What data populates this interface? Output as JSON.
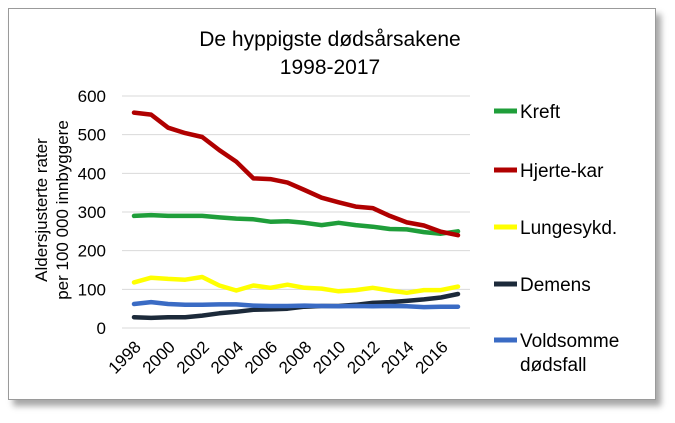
{
  "chart_data": {
    "type": "line",
    "title": "De hyppigste dødsårsakene",
    "subtitle": "1998-2017",
    "ylabel_line1": "Aldersjusterte rater",
    "ylabel_line2": "per 100 000 innbyggere",
    "ylim": [
      0,
      600
    ],
    "y_ticks": [
      "0",
      "100",
      "200",
      "300",
      "400",
      "500",
      "600"
    ],
    "x": [
      1998,
      1999,
      2000,
      2001,
      2002,
      2003,
      2004,
      2005,
      2006,
      2007,
      2008,
      2009,
      2010,
      2011,
      2012,
      2013,
      2014,
      2015,
      2016,
      2017
    ],
    "x_ticks": [
      "1998",
      "2000",
      "2002",
      "2004",
      "2006",
      "2008",
      "2010",
      "2012",
      "2014",
      "2016"
    ],
    "legend_position": "right",
    "grid": true,
    "series": [
      {
        "name": "Kreft",
        "color": "#1f9e3a",
        "values": [
          290,
          292,
          290,
          290,
          290,
          286,
          283,
          281,
          275,
          276,
          272,
          266,
          272,
          266,
          262,
          256,
          255,
          248,
          244,
          250
        ]
      },
      {
        "name": "Hjerte-kar",
        "color": "#b00000",
        "values": [
          557,
          552,
          518,
          504,
          494,
          460,
          430,
          387,
          385,
          376,
          357,
          337,
          325,
          314,
          310,
          290,
          273,
          265,
          249,
          240
        ]
      },
      {
        "name": "Lungesykd.",
        "color": "#ffff00",
        "values": [
          118,
          130,
          127,
          125,
          132,
          110,
          97,
          110,
          104,
          112,
          104,
          102,
          95,
          98,
          104,
          97,
          91,
          98,
          98,
          107
        ]
      },
      {
        "name": "Demens",
        "color": "#1c2a3a",
        "values": [
          28,
          26,
          28,
          28,
          32,
          38,
          42,
          47,
          48,
          50,
          55,
          57,
          57,
          60,
          65,
          67,
          70,
          74,
          79,
          88
        ]
      },
      {
        "name": "Voldsomme dødsfall",
        "name_line1": "Voldsomme",
        "name_line2": "dødsfall",
        "color": "#3a6bc4",
        "values": [
          62,
          67,
          62,
          60,
          60,
          61,
          61,
          58,
          57,
          57,
          58,
          57,
          56,
          57,
          56,
          57,
          56,
          54,
          55,
          55
        ]
      }
    ]
  }
}
